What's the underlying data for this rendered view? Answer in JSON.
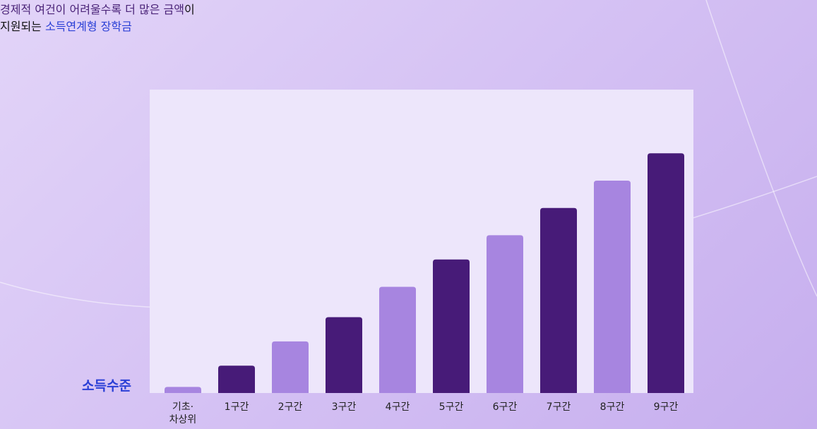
{
  "chart_data": {
    "type": "bar",
    "title": [
      [
        {
          "text": "경제적 여건이 어려울수록 더 많은 금액",
          "color": "#4a2378"
        },
        {
          "text": "이",
          "color": "#111111"
        }
      ],
      [
        {
          "text": "지원되는 ",
          "color": "#111111"
        },
        {
          "text": "소득연계형 장학금",
          "color": "#2a3fd6"
        }
      ]
    ],
    "y_label": "소득수준",
    "y_label_color": "#2a3fd6",
    "categories": [
      "기초·\n차상위",
      "1구간",
      "2구간",
      "3구간",
      "4구간",
      "5구간",
      "6구간",
      "7구간",
      "8구간",
      "9구간"
    ],
    "values": [
      2,
      9,
      17,
      25,
      35,
      44,
      52,
      61,
      70,
      79
    ],
    "colors": [
      "#a785e0",
      "#471b78",
      "#a785e0",
      "#471b78",
      "#a785e0",
      "#471b78",
      "#a785e0",
      "#471b78",
      "#a785e0",
      "#471b78"
    ],
    "ylim": [
      0,
      100
    ],
    "grid": false
  }
}
